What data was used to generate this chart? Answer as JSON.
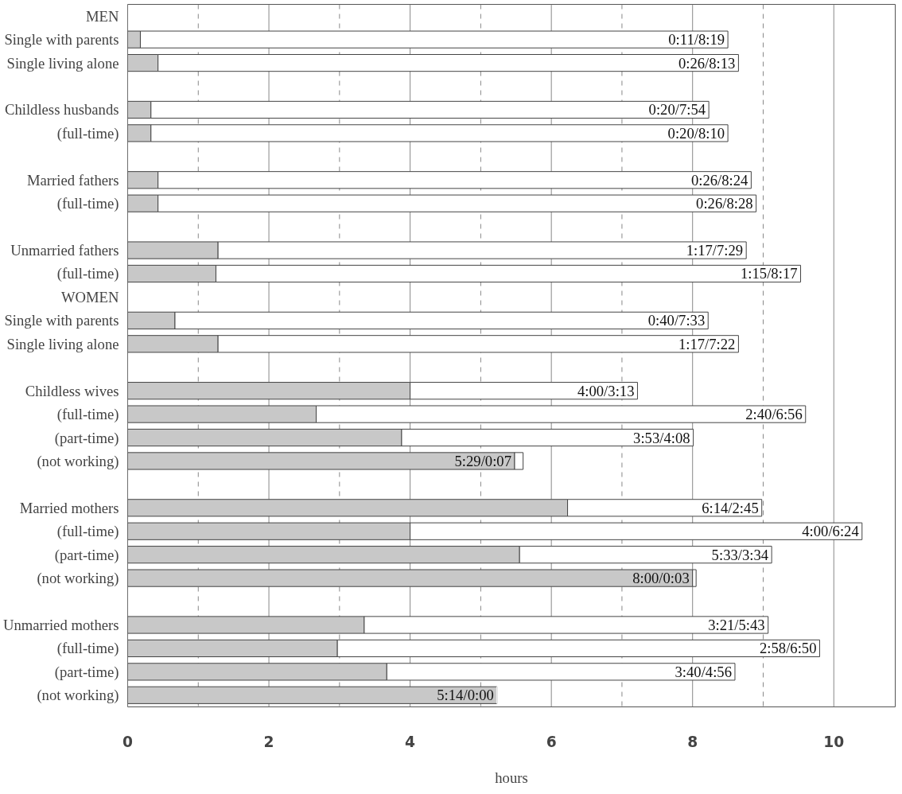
{
  "chart_data": {
    "type": "bar",
    "orientation": "horizontal",
    "stacked": true,
    "xlabel": "hours",
    "categories": [
      "MEN",
      "Single with parents",
      "Single living alone",
      null,
      "Childless husbands",
      "(full-time)",
      null,
      "Married fathers",
      "(full-time)",
      null,
      "Unmarried fathers",
      "(full-time)",
      "WOMEN",
      "Single with parents",
      "Single living alone",
      null,
      "Childless wives",
      "(full-time)",
      "(part-time)",
      "(not working)",
      null,
      "Married mothers",
      "(full-time)",
      "(part-time)",
      "(not working)",
      null,
      "Unmarried mothers",
      "(full-time)",
      "(part-time)",
      "(not working)"
    ],
    "series": [
      {
        "color": "#c8c8c8",
        "values": [
          null,
          0.18,
          0.43,
          null,
          0.33,
          0.33,
          null,
          0.43,
          0.43,
          null,
          1.28,
          1.25,
          null,
          0.67,
          1.28,
          null,
          4,
          2.67,
          3.88,
          5.48,
          null,
          6.23,
          4,
          5.55,
          8,
          null,
          3.35,
          2.97,
          3.67,
          5.23
        ]
      },
      {
        "color": "#ffffff",
        "values": [
          null,
          8.32,
          8.22,
          null,
          7.9,
          8.17,
          null,
          8.4,
          8.47,
          null,
          7.48,
          8.28,
          null,
          7.55,
          7.37,
          null,
          3.22,
          6.93,
          4.13,
          0.12,
          null,
          2.75,
          6.4,
          3.57,
          0.05,
          null,
          5.72,
          6.83,
          4.93,
          0
        ],
        "value_labels": [
          null,
          "0:11/8:19",
          "0:26/8:13",
          null,
          "0:20/7:54",
          "0:20/8:10",
          null,
          "0:26/8:24",
          "0:26/8:28",
          null,
          "1:17/7:29",
          "1:15/8:17",
          null,
          "0:40/7:33",
          "1:17/7:22",
          null,
          "4:00/3:13",
          "2:40/6:56",
          "3:53/4:08",
          "5:29/0:07",
          null,
          "6:14/2:45",
          "4:00/6:24",
          "5:33/3:34",
          "8:00/0:03",
          null,
          "3:21/5:43",
          "2:58/6:50",
          "3:40/4:56",
          "5:14/0:00"
        ]
      }
    ],
    "xlim": [
      0,
      10.87
    ],
    "xticks": [
      0,
      {
        "value": 1,
        "label": null
      },
      2,
      {
        "value": 3,
        "label": null
      },
      4,
      {
        "value": 5,
        "label": null
      },
      6,
      {
        "value": 7,
        "label": null
      },
      8,
      {
        "value": 9,
        "label": null
      },
      10
    ],
    "grid": "x"
  }
}
